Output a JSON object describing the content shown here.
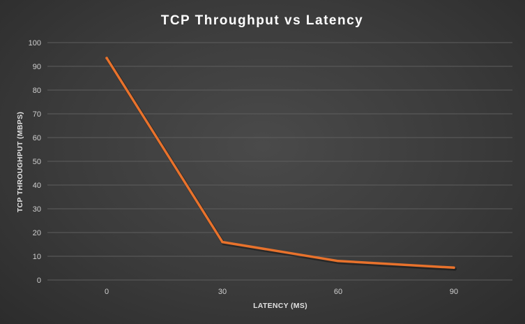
{
  "chart_data": {
    "type": "line",
    "title": "TCP Throughput vs Latency",
    "xlabel": "LATENCY (MS)",
    "ylabel": "TCP THROUGHPUT (MBPS)",
    "categories": [
      "0",
      "30",
      "60",
      "90"
    ],
    "series": [
      {
        "values": [
          93.5,
          16,
          8,
          5.2
        ]
      }
    ],
    "ylim": [
      0,
      100
    ],
    "yticks": [
      0,
      10,
      20,
      30,
      40,
      50,
      60,
      70,
      80,
      90,
      100
    ],
    "grid": true,
    "legend": "none",
    "colors": {
      "line": "#e8722c",
      "grid": "#5e5e5e",
      "background": "#3b3b3b"
    }
  }
}
